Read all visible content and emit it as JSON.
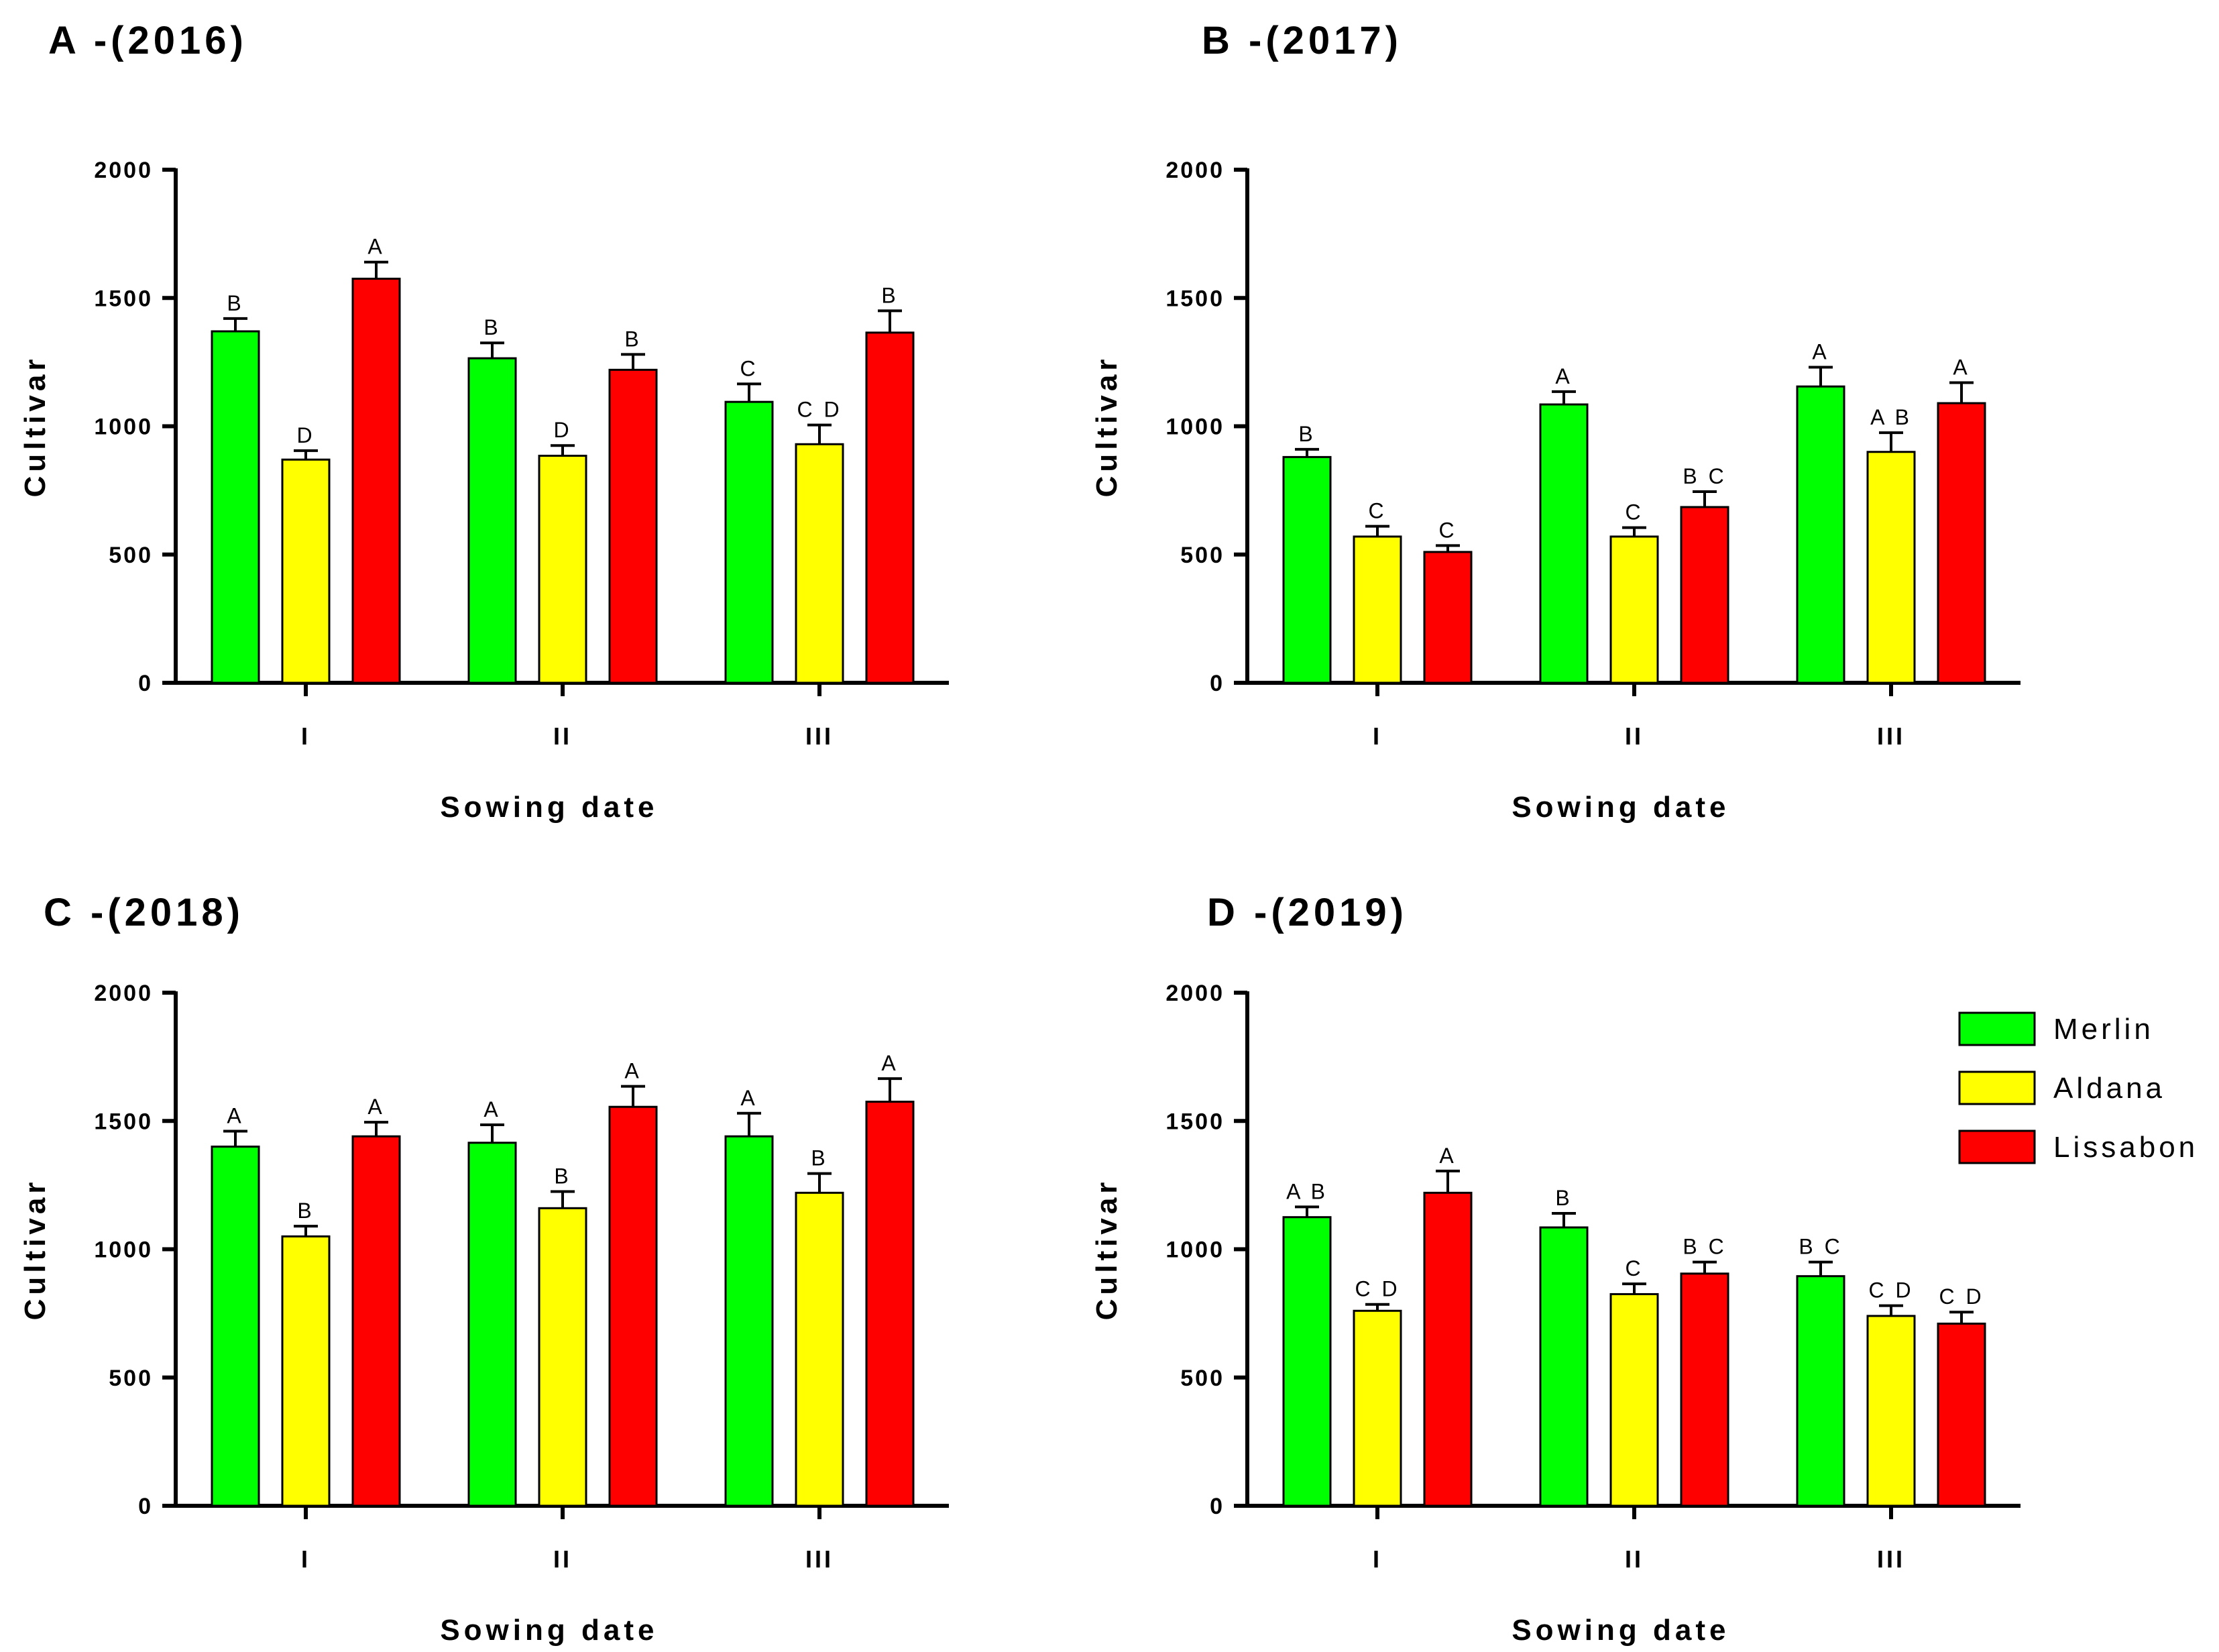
{
  "chart_data": [
    {
      "type": "bar",
      "panel": "A",
      "title": "A -(2016)",
      "xlabel": "Sowing date",
      "ylabel": "Cultivar",
      "ylim": [
        0,
        2000
      ],
      "yticks": [
        "0",
        "500",
        "1000",
        "1500",
        "2000"
      ],
      "categories": [
        "I",
        "II",
        "III"
      ],
      "series": [
        {
          "name": "Merlin",
          "values": [
            1370,
            1265,
            1095
          ],
          "errors": [
            50,
            60,
            70
          ],
          "labels": [
            "B",
            "B",
            "C"
          ]
        },
        {
          "name": "Aldana",
          "values": [
            870,
            885,
            930
          ],
          "errors": [
            35,
            40,
            75
          ],
          "labels": [
            "D",
            "D",
            "C D"
          ]
        },
        {
          "name": "Lissabon",
          "values": [
            1575,
            1220,
            1365
          ],
          "errors": [
            65,
            60,
            85
          ],
          "labels": [
            "A",
            "B",
            "B"
          ]
        }
      ]
    },
    {
      "type": "bar",
      "panel": "B",
      "title": "B -(2017)",
      "xlabel": "Sowing date",
      "ylabel": "Cultivar",
      "ylim": [
        0,
        2000
      ],
      "yticks": [
        "0",
        "500",
        "1000",
        "1500",
        "2000"
      ],
      "categories": [
        "I",
        "II",
        "III"
      ],
      "series": [
        {
          "name": "Merlin",
          "values": [
            880,
            1085,
            1155
          ],
          "errors": [
            30,
            50,
            75
          ],
          "labels": [
            "B",
            "A",
            "A"
          ]
        },
        {
          "name": "Aldana",
          "values": [
            570,
            570,
            900
          ],
          "errors": [
            40,
            35,
            75
          ],
          "labels": [
            "C",
            "C",
            "A B"
          ]
        },
        {
          "name": "Lissabon",
          "values": [
            510,
            685,
            1090
          ],
          "errors": [
            25,
            60,
            80
          ],
          "labels": [
            "C",
            "B C",
            "A"
          ]
        }
      ]
    },
    {
      "type": "bar",
      "panel": "C",
      "title": "C -(2018)",
      "xlabel": "Sowing date",
      "ylabel": "Cultivar",
      "ylim": [
        0,
        2000
      ],
      "yticks": [
        "0",
        "500",
        "1000",
        "1500",
        "2000"
      ],
      "categories": [
        "I",
        "II",
        "III"
      ],
      "series": [
        {
          "name": "Merlin",
          "values": [
            1400,
            1415,
            1440
          ],
          "errors": [
            60,
            70,
            90
          ],
          "labels": [
            "A",
            "A",
            "A"
          ]
        },
        {
          "name": "Aldana",
          "values": [
            1050,
            1160,
            1220
          ],
          "errors": [
            40,
            65,
            75
          ],
          "labels": [
            "B",
            "B",
            "B"
          ]
        },
        {
          "name": "Lissabon",
          "values": [
            1440,
            1555,
            1575
          ],
          "errors": [
            55,
            80,
            90
          ],
          "labels": [
            "A",
            "A",
            "A"
          ]
        }
      ]
    },
    {
      "type": "bar",
      "panel": "D",
      "title": "D -(2019)",
      "xlabel": "Sowing date",
      "ylabel": "Cultivar",
      "ylim": [
        0,
        2000
      ],
      "yticks": [
        "0",
        "500",
        "1000",
        "1500",
        "2000"
      ],
      "categories": [
        "I",
        "II",
        "III"
      ],
      "series": [
        {
          "name": "Merlin",
          "values": [
            1125,
            1085,
            895
          ],
          "errors": [
            40,
            55,
            55
          ],
          "labels": [
            "A B",
            "B",
            "B C"
          ]
        },
        {
          "name": "Aldana",
          "values": [
            760,
            825,
            740
          ],
          "errors": [
            25,
            40,
            40
          ],
          "labels": [
            "C D",
            "C",
            "C D"
          ]
        },
        {
          "name": "Lissabon",
          "values": [
            1220,
            905,
            710
          ],
          "errors": [
            85,
            45,
            45
          ],
          "labels": [
            "A",
            "B C",
            "C D"
          ]
        }
      ]
    }
  ],
  "legend": {
    "position": "top-right of panel D",
    "items": [
      {
        "name": "Merlin",
        "color": "#00ff00"
      },
      {
        "name": "Aldana",
        "color": "#ffff00"
      },
      {
        "name": "Lissabon",
        "color": "#ff0000"
      }
    ]
  }
}
